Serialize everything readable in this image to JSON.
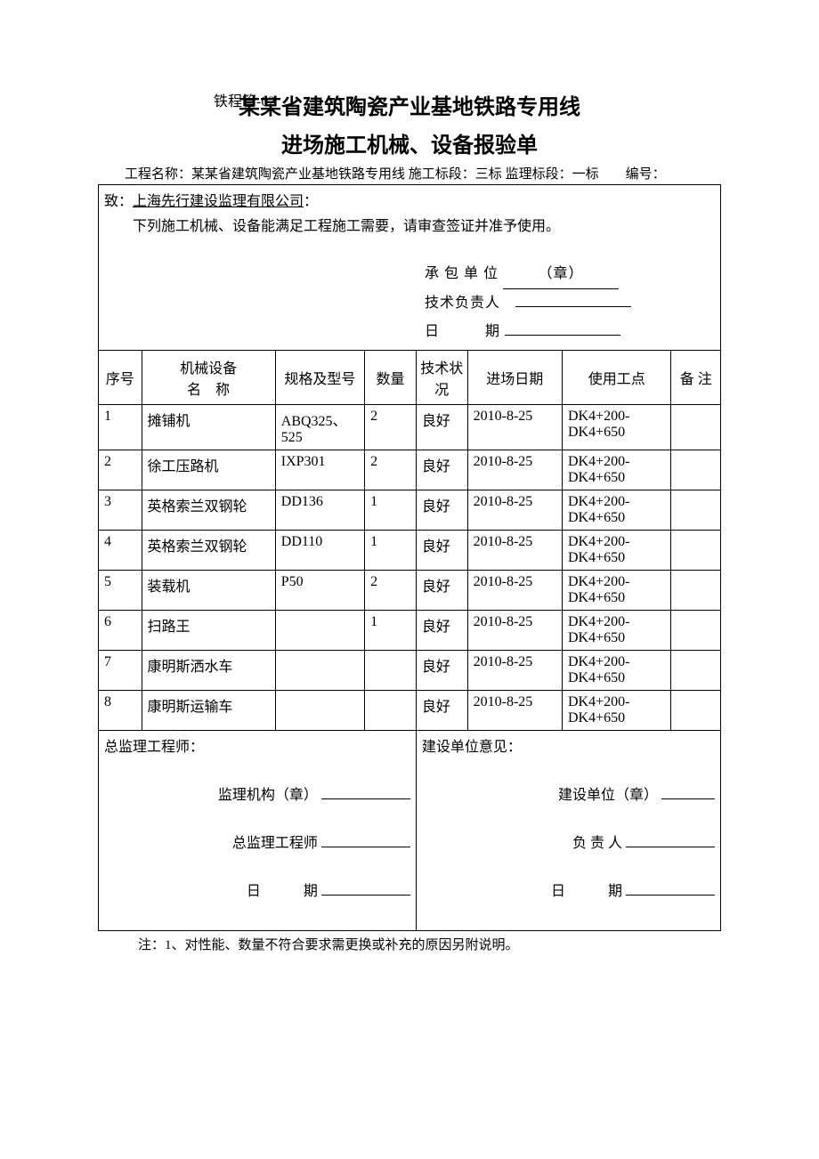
{
  "form_code": "铁程管-02",
  "title_main": "某某省建筑陶瓷产业基地铁路专用线",
  "title_sub": "进场施工机械、设备报验单",
  "meta": {
    "project_label": "工程名称：",
    "project_name": "某某省建筑陶瓷产业基地铁路专用线",
    "section_label": " 施工标段：",
    "section_value": "三标",
    "super_section_label": " 监理标段：",
    "super_section_value": "一标",
    "serial_label": "编号："
  },
  "intro": {
    "to_label": "致：",
    "company": "上海先行建设监理有限公司",
    "colon": "：",
    "body": "下列施工机械、设备能满足工程施工需要，请审查签证并准予使用。",
    "contractor_label": "承 包 单 位",
    "contractor_stamp": "（章）",
    "tech_lead_label": "技术负责人",
    "date_label": "日　　　期"
  },
  "columns": {
    "seq": "序号",
    "name": "机械设备\n名　称",
    "spec": "规格及型号",
    "qty": "数量",
    "cond": "技术状况",
    "date": "进场日期",
    "site": "使用工点",
    "note": "备 注"
  },
  "rows": [
    {
      "seq": "1",
      "name": "摊铺机",
      "spec": "ABQ325、525",
      "qty": "2",
      "cond": "良好",
      "date": "2010-8-25",
      "site": "DK4+200-DK4+650",
      "note": ""
    },
    {
      "seq": "2",
      "name": "徐工压路机",
      "spec": "IXP301",
      "qty": "2",
      "cond": "良好",
      "date": "2010-8-25",
      "site": "DK4+200-DK4+650",
      "note": ""
    },
    {
      "seq": "3",
      "name": "英格索兰双钢轮",
      "spec": "DD136",
      "qty": "1",
      "cond": "良好",
      "date": "2010-8-25",
      "site": "DK4+200-DK4+650",
      "note": ""
    },
    {
      "seq": "4",
      "name": "英格索兰双钢轮",
      "spec": "DD110",
      "qty": "1",
      "cond": "良好",
      "date": "2010-8-25",
      "site": "DK4+200-DK4+650",
      "note": ""
    },
    {
      "seq": "5",
      "name": "装载机",
      "spec": "P50",
      "qty": "2",
      "cond": "良好",
      "date": "2010-8-25",
      "site": "DK4+200-DK4+650",
      "note": ""
    },
    {
      "seq": "6",
      "name": "扫路王",
      "spec": "",
      "qty": "1",
      "cond": "良好",
      "date": "2010-8-25",
      "site": "DK4+200-DK4+650",
      "note": ""
    },
    {
      "seq": "7",
      "name": "康明斯洒水车",
      "spec": "",
      "qty": "",
      "cond": "良好",
      "date": "2010-8-25",
      "site": "DK4+200-DK4+650",
      "note": ""
    },
    {
      "seq": "8",
      "name": "康明斯运输车",
      "spec": "",
      "qty": "",
      "cond": "良好",
      "date": "2010-8-25",
      "site": "DK4+200-DK4+650",
      "note": ""
    }
  ],
  "footer": {
    "left_title": "总监理工程师：",
    "left_org": "监理机构（章）",
    "left_eng": "总监理工程师",
    "left_date": "日　　　期",
    "right_title": "建设单位意见：",
    "right_org": "建设单位（章）",
    "right_person": "负 责 人",
    "right_date": "日　　　期"
  },
  "note": "注：1、对性能、数量不符合要求需更换或补充的原因另附说明。"
}
